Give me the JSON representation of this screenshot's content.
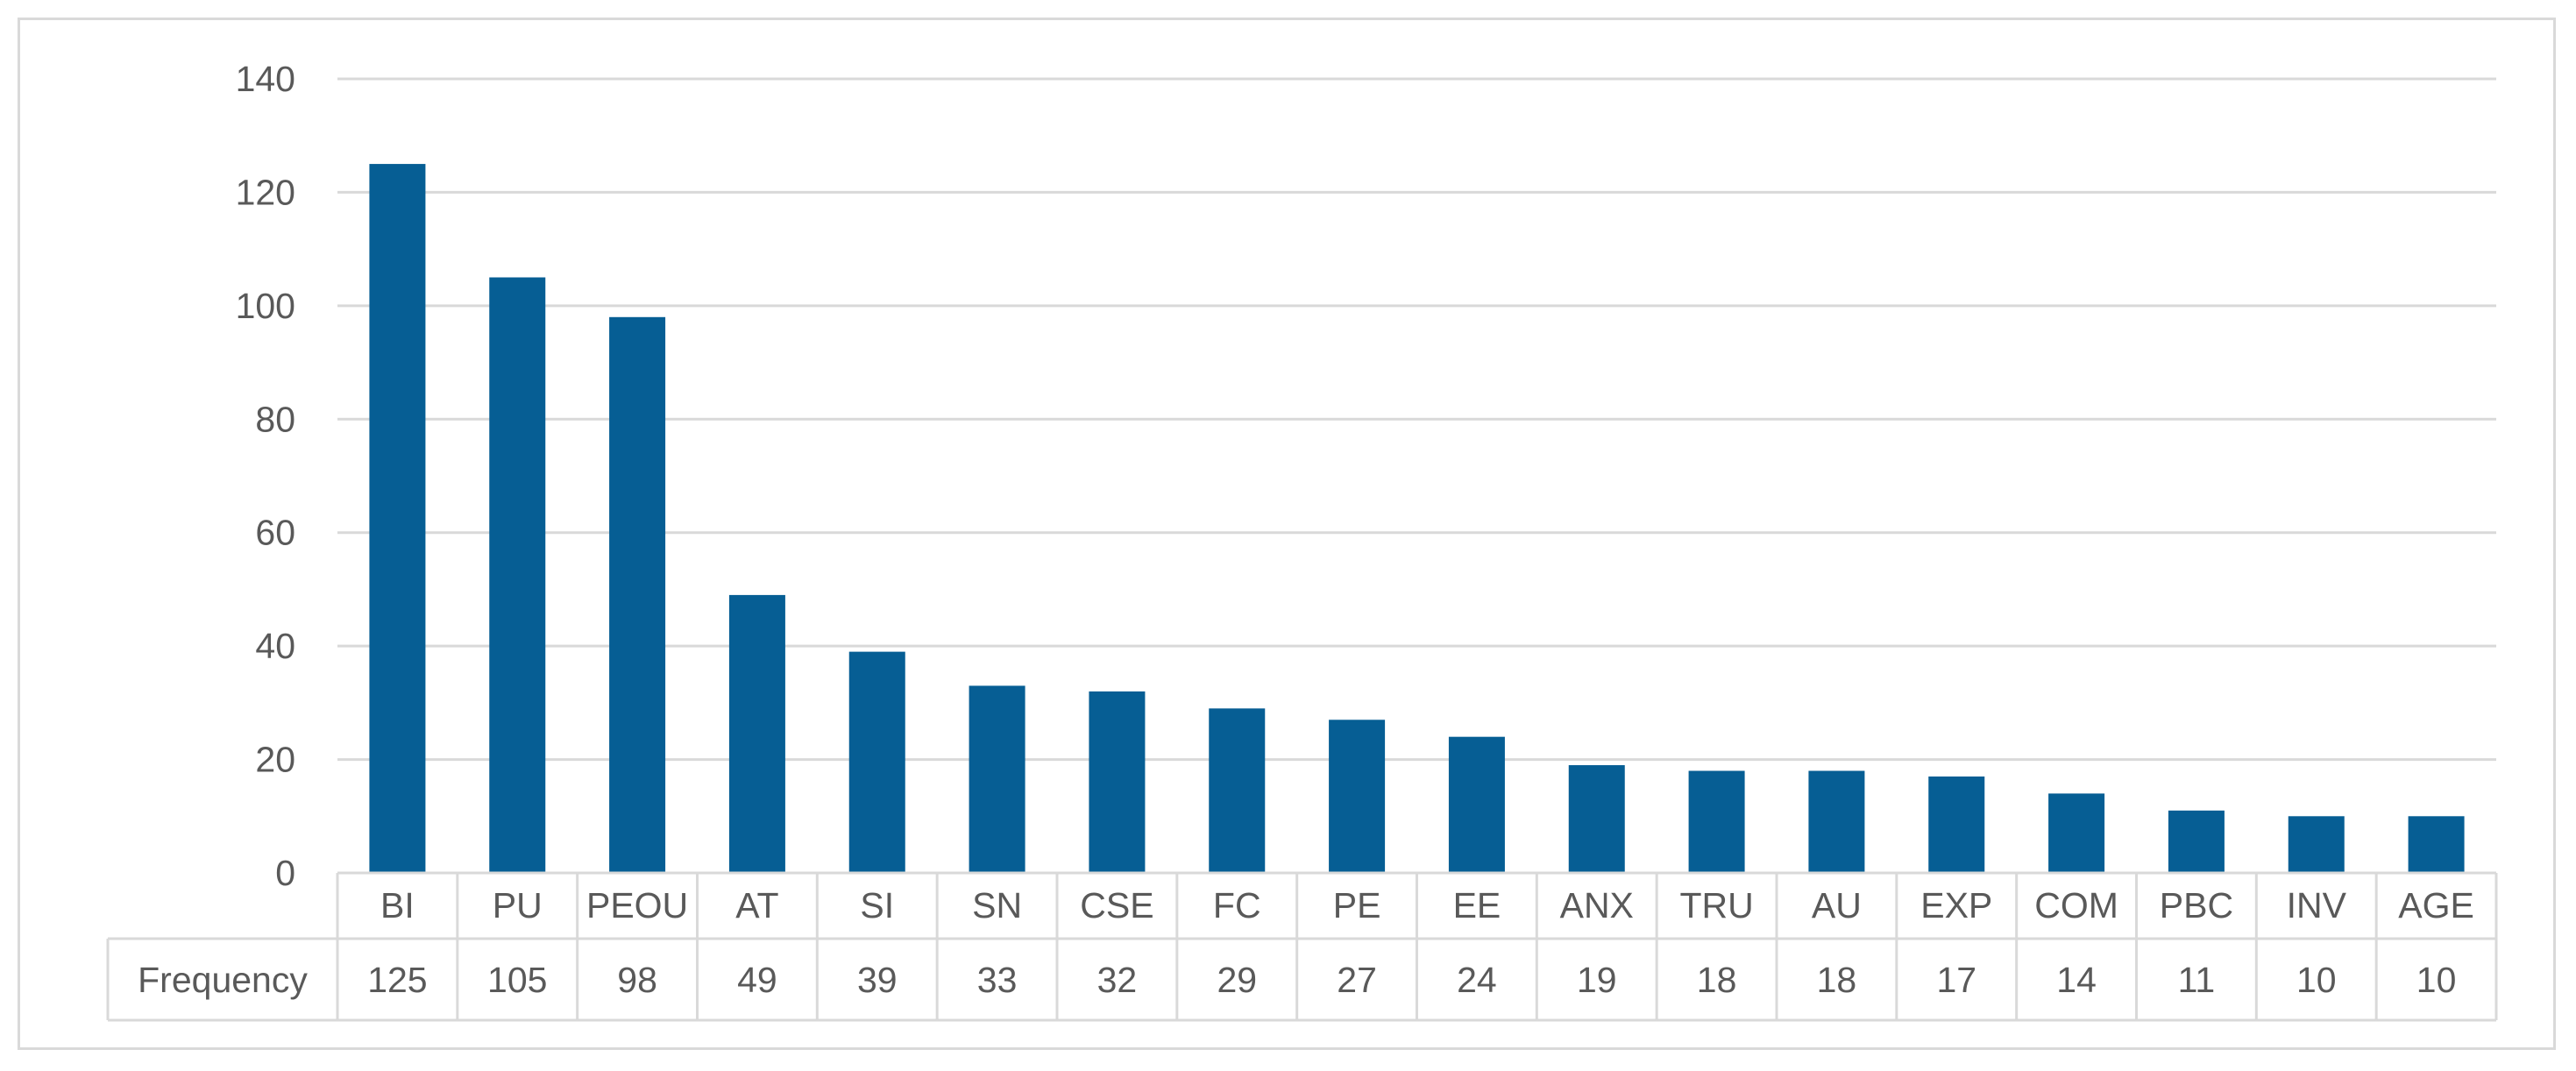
{
  "chart_data": {
    "type": "bar",
    "categories": [
      "BI",
      "PU",
      "PEOU",
      "AT",
      "SI",
      "SN",
      "CSE",
      "FC",
      "PE",
      "EE",
      "ANX",
      "TRU",
      "AU",
      "EXP",
      "COM",
      "PBC",
      "INV",
      "AGE"
    ],
    "series": [
      {
        "name": "Frequency",
        "values": [
          125,
          105,
          98,
          49,
          39,
          33,
          32,
          29,
          27,
          24,
          19,
          18,
          18,
          17,
          14,
          11,
          10,
          10
        ]
      }
    ],
    "title": "",
    "xlabel": "",
    "ylabel": "",
    "ylim": [
      0,
      140
    ],
    "y_ticks": [
      0,
      20,
      40,
      60,
      80,
      100,
      120,
      140
    ],
    "grid": true,
    "data_table": true,
    "legend": "none",
    "colors": {
      "bar": "#065e94",
      "grid": "#d9d9d9",
      "text": "#595959",
      "frame": "#d9d9d9"
    }
  }
}
